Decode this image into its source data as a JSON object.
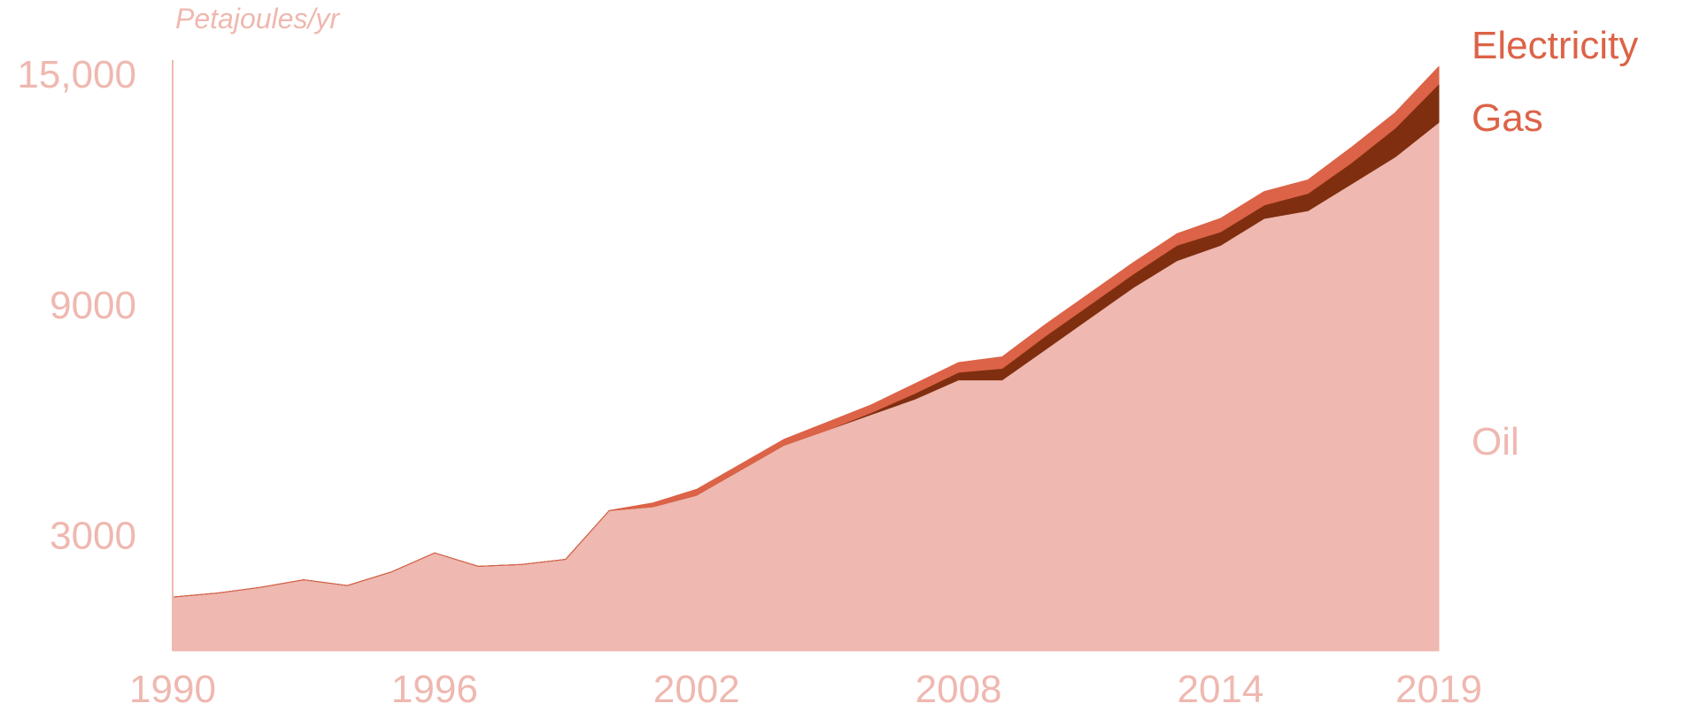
{
  "chart_data": {
    "type": "area",
    "stacked": true,
    "unit_label": "Petajoules/yr",
    "title": "",
    "xlabel": "",
    "ylabel": "",
    "xlim": [
      1990,
      2019
    ],
    "ylim": [
      0,
      15000
    ],
    "x_ticks": [
      1990,
      1996,
      2002,
      2008,
      2014,
      2019
    ],
    "x_tick_labels": [
      "1990",
      "1996",
      "2002",
      "2008",
      "2014",
      "2019"
    ],
    "y_ticks": [
      3000,
      9000,
      15000
    ],
    "y_tick_labels": [
      "3000",
      "9000",
      "15,000"
    ],
    "grid": false,
    "legend": "series labels at right end of chart",
    "x": [
      1990,
      1991,
      1992,
      1993,
      1994,
      1995,
      1996,
      1997,
      1998,
      1999,
      2000,
      2001,
      2002,
      2003,
      2004,
      2005,
      2006,
      2007,
      2008,
      2009,
      2010,
      2011,
      2012,
      2013,
      2014,
      2015,
      2016,
      2017,
      2018,
      2019
    ],
    "series": [
      {
        "name": "Oil",
        "color": "#efb8b0",
        "values": [
          1400,
          1500,
          1650,
          1850,
          1700,
          2050,
          2550,
          2200,
          2250,
          2380,
          3650,
          3750,
          4050,
          4700,
          5350,
          5750,
          6150,
          6550,
          7050,
          7050,
          7850,
          8650,
          9450,
          10150,
          10550,
          11250,
          11450,
          12150,
          12850,
          13750
        ]
      },
      {
        "name": "Gas",
        "color": "#7f2f10",
        "values": [
          0,
          0,
          0,
          0,
          0,
          0,
          0,
          0,
          0,
          0,
          0,
          0,
          0,
          0,
          0,
          0,
          50,
          150,
          200,
          300,
          350,
          350,
          350,
          400,
          350,
          350,
          450,
          550,
          750,
          1000
        ]
      },
      {
        "name": "Electricity",
        "color": "#dc6347",
        "values": [
          0,
          0,
          0,
          0,
          0,
          0,
          0,
          0,
          0,
          0,
          0,
          100,
          150,
          150,
          150,
          200,
          200,
          250,
          250,
          300,
          300,
          300,
          300,
          300,
          350,
          350,
          350,
          400,
          400,
          450
        ]
      }
    ]
  }
}
